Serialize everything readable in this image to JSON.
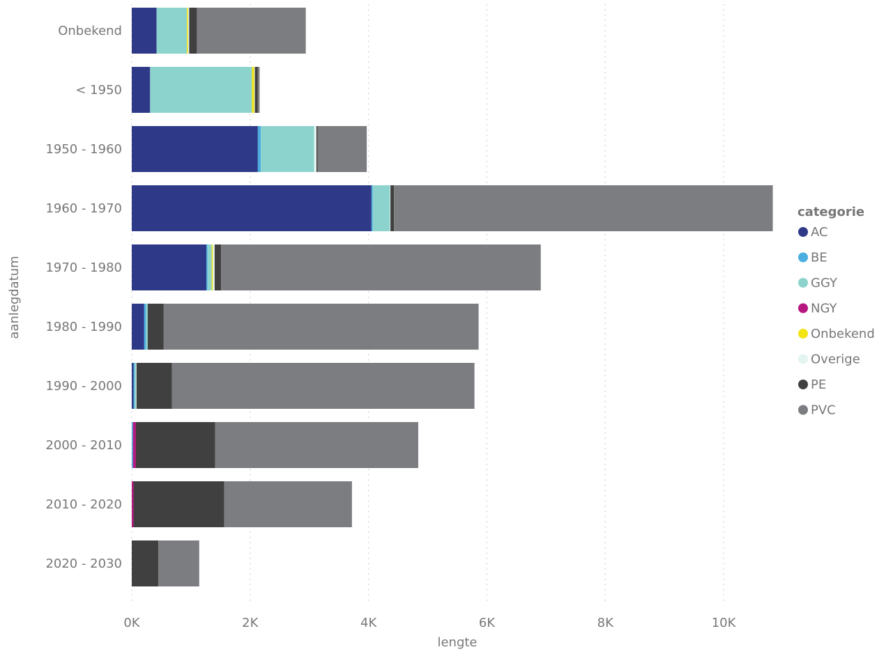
{
  "chart_data": {
    "type": "bar",
    "orientation": "horizontal",
    "stacked": true,
    "xlabel": "lengte",
    "ylabel": "aanlegdatum",
    "xlim": [
      0,
      11000
    ],
    "xticks": [
      0,
      2000,
      4000,
      6000,
      8000,
      10000
    ],
    "xtick_labels": [
      "0K",
      "2K",
      "4K",
      "6K",
      "8K",
      "10K"
    ],
    "grid": "vertical-dotted",
    "legend_title": "categorie",
    "legend_position": "right",
    "categories": [
      "Onbekend",
      "< 1950",
      "1950 - 1960",
      "1960 - 1970",
      "1970 - 1980",
      "1980 - 1990",
      "1990 - 2000",
      "2000 - 2010",
      "2010 - 2020",
      "2020 - 2030"
    ],
    "series": [
      {
        "name": "AC",
        "color": "#2e3a87",
        "values": [
          420,
          310,
          2130,
          4050,
          1260,
          210,
          30,
          0,
          0,
          0
        ]
      },
      {
        "name": "BE",
        "color": "#4aaee0",
        "values": [
          0,
          0,
          50,
          20,
          20,
          30,
          20,
          20,
          0,
          0
        ]
      },
      {
        "name": "GGY",
        "color": "#8dd3cd",
        "values": [
          510,
          1720,
          900,
          290,
          70,
          30,
          20,
          0,
          0,
          0
        ]
      },
      {
        "name": "NGY",
        "color": "#b5177f",
        "values": [
          0,
          0,
          0,
          0,
          0,
          0,
          0,
          50,
          30,
          0
        ]
      },
      {
        "name": "Onbekend",
        "color": "#f2e313",
        "values": [
          20,
          40,
          0,
          0,
          20,
          0,
          0,
          0,
          0,
          0
        ]
      },
      {
        "name": "Overige",
        "color": "#e3f4f1",
        "values": [
          20,
          10,
          40,
          10,
          30,
          0,
          10,
          0,
          0,
          0
        ]
      },
      {
        "name": "PE",
        "color": "#404040",
        "values": [
          130,
          50,
          20,
          60,
          110,
          270,
          600,
          1340,
          1530,
          450
        ]
      },
      {
        "name": "PVC",
        "color": "#7c7d80",
        "values": [
          1840,
          30,
          830,
          6400,
          5400,
          5320,
          5110,
          3430,
          2160,
          690
        ]
      }
    ]
  }
}
